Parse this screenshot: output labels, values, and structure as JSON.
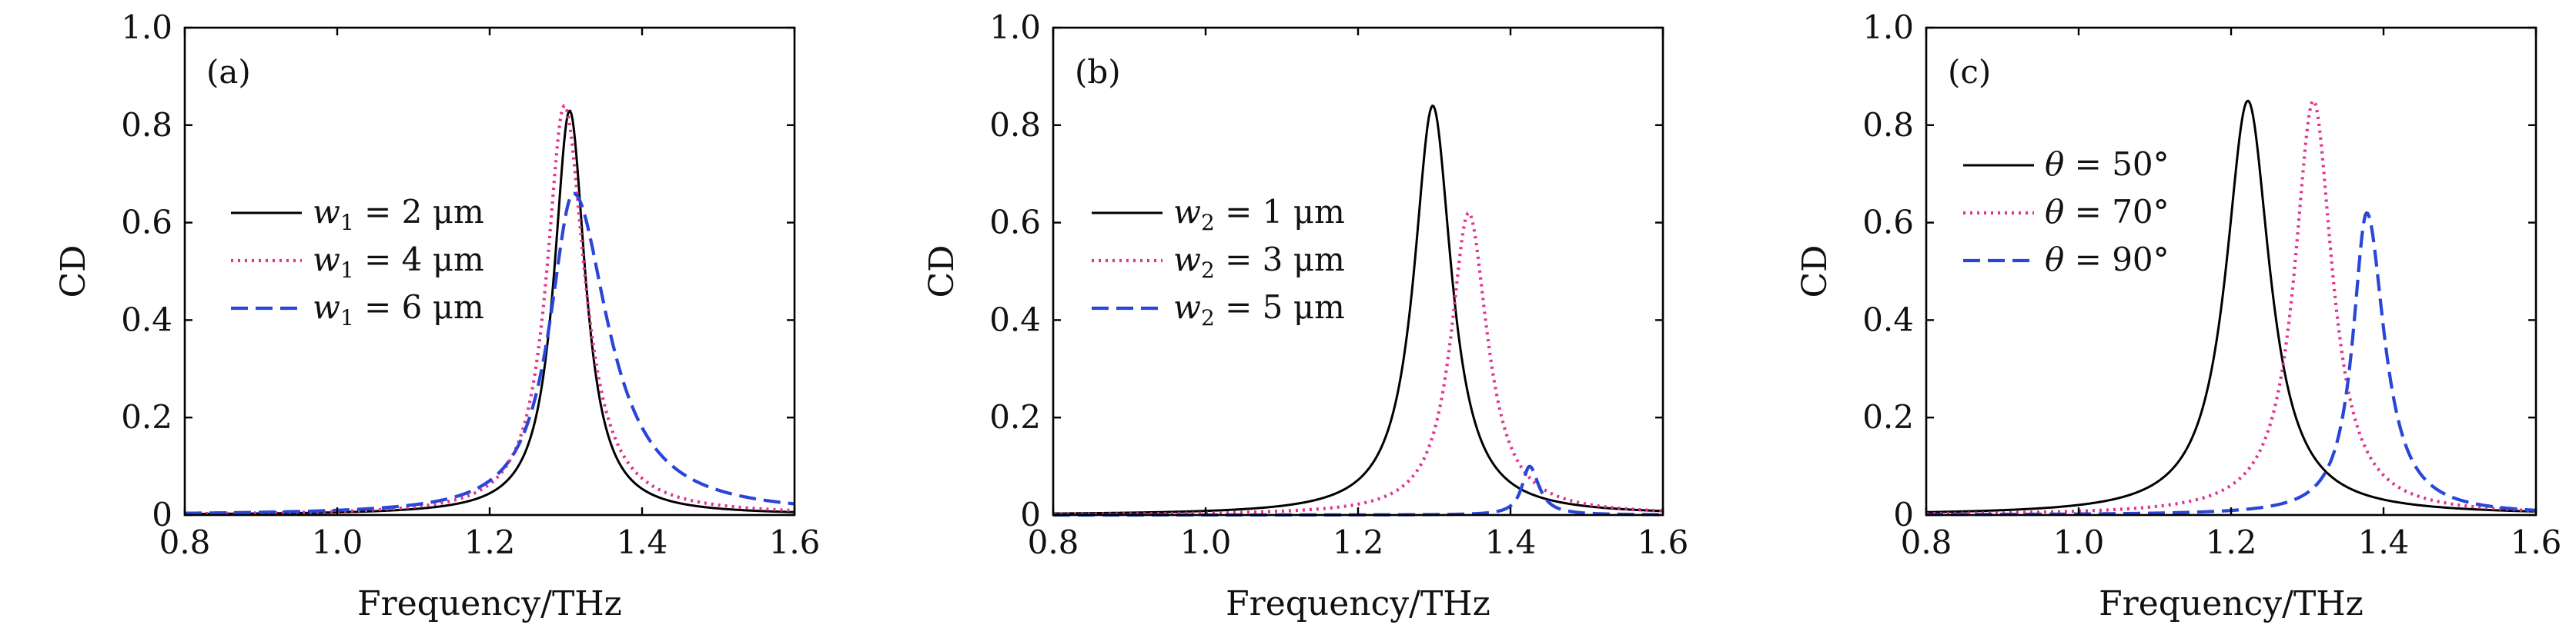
{
  "chart_data": [
    {
      "type": "line",
      "panel_label": "(a)",
      "xlabel": "Frequency/THz",
      "ylabel": "CD",
      "xlim": [
        0.8,
        1.6
      ],
      "ylim": [
        0,
        1.0
      ],
      "xticks": [
        0.8,
        1.0,
        1.2,
        1.4,
        1.6
      ],
      "yticks": [
        0,
        0.2,
        0.4,
        0.6,
        0.8,
        1.0
      ],
      "xtick_labels": [
        "0.8",
        "1.0",
        "1.2",
        "1.4",
        "1.6"
      ],
      "ytick_labels": [
        "0",
        "0.2",
        "0.4",
        "0.6",
        "0.8",
        "1.0"
      ],
      "legend_position": "middle-left",
      "series": [
        {
          "name": "w₁ = 2 μm",
          "legend_label": "w",
          "sub": "1",
          "eq": " = ",
          "value_text": "2 μm",
          "color": "#000000",
          "style": "solid",
          "peak_x": 1.305,
          "peak_y": 0.83,
          "width_left": 0.025,
          "width_right": 0.025
        },
        {
          "name": "w₁ = 4 μm",
          "legend_label": "w",
          "sub": "1",
          "eq": " = ",
          "value_text": "4 μm",
          "color": "#e0338f",
          "style": "dotted",
          "peak_x": 1.298,
          "peak_y": 0.84,
          "width_left": 0.028,
          "width_right": 0.032
        },
        {
          "name": "w₁ = 6 μm",
          "legend_label": "w",
          "sub": "1",
          "eq": " = ",
          "value_text": "6 μm",
          "color": "#2a46d8",
          "style": "dashed",
          "peak_x": 1.31,
          "peak_y": 0.66,
          "width_left": 0.038,
          "width_right": 0.055
        }
      ]
    },
    {
      "type": "line",
      "panel_label": "(b)",
      "xlabel": "Frequency/THz",
      "ylabel": "CD",
      "xlim": [
        0.8,
        1.6
      ],
      "ylim": [
        0,
        1.0
      ],
      "xticks": [
        0.8,
        1.0,
        1.2,
        1.4,
        1.6
      ],
      "yticks": [
        0,
        0.2,
        0.4,
        0.6,
        0.8,
        1.0
      ],
      "xtick_labels": [
        "0.8",
        "1.0",
        "1.2",
        "1.4",
        "1.6"
      ],
      "ytick_labels": [
        "0",
        "0.2",
        "0.4",
        "0.6",
        "0.8",
        "1.0"
      ],
      "legend_position": "middle-left",
      "series": [
        {
          "name": "w₂ = 1 μm",
          "legend_label": "w",
          "sub": "2",
          "eq": " = ",
          "value_text": "1 μm",
          "color": "#000000",
          "style": "solid",
          "peak_x": 1.298,
          "peak_y": 0.84,
          "width_left": 0.03,
          "width_right": 0.03
        },
        {
          "name": "w₂ = 3 μm",
          "legend_label": "w",
          "sub": "2",
          "eq": " = ",
          "value_text": "3 μm",
          "color": "#e0338f",
          "style": "dotted",
          "peak_x": 1.345,
          "peak_y": 0.62,
          "width_left": 0.028,
          "width_right": 0.03
        },
        {
          "name": "w₂ = 5 μm",
          "legend_label": "w",
          "sub": "2",
          "eq": " = ",
          "value_text": "5 μm",
          "color": "#2a46d8",
          "style": "dashed",
          "peak_x": 1.425,
          "peak_y": 0.1,
          "width_left": 0.012,
          "width_right": 0.015
        }
      ]
    },
    {
      "type": "line",
      "panel_label": "(c)",
      "xlabel": "Frequency/THz",
      "ylabel": "CD",
      "xlim": [
        0.8,
        1.6
      ],
      "ylim": [
        0,
        1.0
      ],
      "xticks": [
        0.8,
        1.0,
        1.2,
        1.4,
        1.6
      ],
      "yticks": [
        0,
        0.2,
        0.4,
        0.6,
        0.8,
        1.0
      ],
      "xtick_labels": [
        "0.8",
        "1.0",
        "1.2",
        "1.4",
        "1.6"
      ],
      "ytick_labels": [
        "0",
        "0.2",
        "0.4",
        "0.6",
        "0.8",
        "1.0"
      ],
      "legend_position": "upper-left",
      "series": [
        {
          "name": "θ = 50°",
          "legend_label": "θ",
          "sub": "",
          "eq": " = ",
          "value_text": "50°",
          "color": "#000000",
          "style": "solid",
          "peak_x": 1.222,
          "peak_y": 0.85,
          "width_left": 0.035,
          "width_right": 0.035
        },
        {
          "name": "θ = 70°",
          "legend_label": "θ",
          "sub": "",
          "eq": " = ",
          "value_text": "70°",
          "color": "#e0338f",
          "style": "dotted",
          "peak_x": 1.308,
          "peak_y": 0.85,
          "width_left": 0.03,
          "width_right": 0.03
        },
        {
          "name": "θ = 90°",
          "legend_label": "θ",
          "sub": "",
          "eq": " = ",
          "value_text": "90°",
          "color": "#2a46d8",
          "style": "dashed",
          "peak_x": 1.378,
          "peak_y": 0.62,
          "width_left": 0.022,
          "width_right": 0.028
        }
      ]
    }
  ]
}
